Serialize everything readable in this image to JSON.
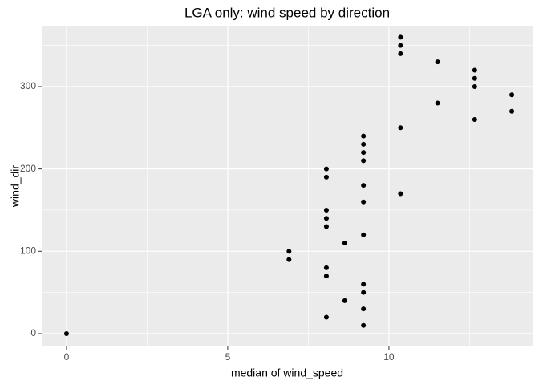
{
  "chart_data": {
    "type": "scatter",
    "title": "LGA only: wind speed by direction",
    "x_label": "median of wind_speed",
    "y_label": "wind_dir",
    "x": [
      0,
      6.9,
      6.9,
      8.06,
      8.06,
      8.06,
      8.06,
      8.06,
      8.06,
      8.06,
      8.06,
      8.63,
      8.63,
      9.21,
      9.21,
      9.21,
      9.21,
      9.21,
      9.21,
      9.21,
      9.21,
      9.21,
      9.21,
      9.21,
      10.36,
      10.36,
      10.36,
      10.36,
      10.36,
      11.51,
      11.51,
      12.66,
      12.66,
      12.66,
      12.66,
      13.81,
      13.81
    ],
    "y": [
      0,
      100,
      90,
      200,
      190,
      150,
      140,
      130,
      80,
      70,
      20,
      110,
      40,
      240,
      230,
      220,
      210,
      180,
      160,
      120,
      60,
      50,
      30,
      10,
      360,
      350,
      340,
      250,
      170,
      330,
      280,
      320,
      310,
      300,
      260,
      290,
      270
    ],
    "color": "#000000",
    "xlim": [
      -0.77,
      14.48
    ],
    "ylim": [
      -15.6,
      374
    ],
    "xticks": [
      0,
      5,
      10
    ],
    "yticks": [
      0,
      100,
      200,
      300
    ],
    "x_minor_breaks": [
      2.5,
      7.5,
      12.5
    ],
    "y_minor_breaks": [
      50,
      150,
      250,
      350
    ],
    "grid": true
  }
}
